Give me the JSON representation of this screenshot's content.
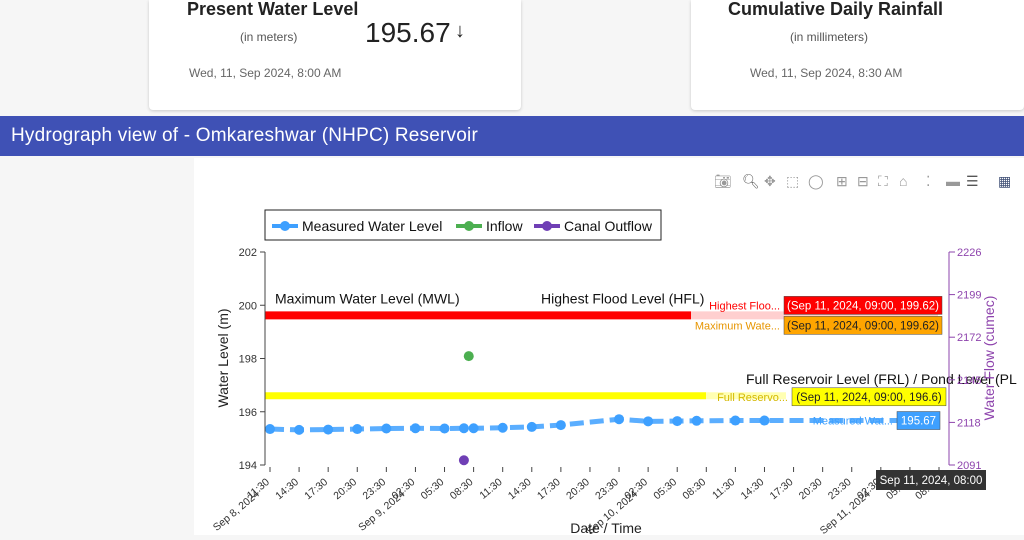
{
  "cards": {
    "water_level": {
      "title": "Present Water Level",
      "unit": "(in meters)",
      "value": "195.67",
      "trend_icon": "arrow-down-icon",
      "date": "Wed, 11, Sep 2024, 8:00 AM"
    },
    "rainfall": {
      "title": "Cumulative Daily Rainfall",
      "unit": "(in millimeters)",
      "date": "Wed, 11, Sep 2024, 8:30 AM"
    }
  },
  "banner": {
    "title": "Hydrograph view of - Omkareshwar (NHPC) Reservoir"
  },
  "modebar": [
    "camera-icon",
    "zoom-icon",
    "pan-icon",
    "box-select-icon",
    "lasso-icon",
    "zoom-in-icon",
    "zoom-out-icon",
    "autoscale-icon",
    "reset-axes-icon",
    "spike-lines-icon",
    "hover-closest-icon",
    "hover-compare-icon",
    "plotly-logo-icon"
  ],
  "chart_data": {
    "type": "line",
    "legend_placement": "top-left",
    "legend": [
      "Measured Water Level",
      "Inflow",
      "Canal Outflow"
    ],
    "xlabel": "Date / Time",
    "ylabel": "Water Level (m)",
    "y2label": "Water Flow (cumec)",
    "ylim": [
      194,
      202
    ],
    "y2lim": [
      2091,
      2226
    ],
    "yticks": [
      "194",
      "196",
      "198",
      "200",
      "202"
    ],
    "y2ticks": [
      "2091",
      "2118",
      "2145",
      "2172",
      "2199",
      "2226"
    ],
    "x_ticks": [
      "11:30\nSep 8, 2024",
      "14:30",
      "17:30",
      "20:30",
      "23:30",
      "02:30\nSep 9, 2024",
      "05:30",
      "08:30",
      "11:30",
      "14:30",
      "17:30",
      "20:30",
      "23:30",
      "02:30\nSep 10, 2024",
      "05:30",
      "08:30",
      "11:30",
      "14:30",
      "17:30",
      "20:30",
      "23:30",
      "02:30\nSep 11, 2024",
      "05:30",
      "08:30"
    ],
    "x_hours": [
      0,
      3,
      6,
      9,
      12,
      15,
      18,
      21,
      24,
      27,
      30,
      33,
      36,
      39,
      42,
      45,
      48,
      51,
      54,
      57,
      60,
      63,
      66,
      69
    ],
    "series": [
      {
        "name": "Measured Water Level",
        "color": "#3ea0ff",
        "x_hours": [
          0,
          3,
          6,
          9,
          12,
          15,
          18,
          20,
          21,
          24,
          27,
          30,
          36,
          39,
          42,
          44,
          48,
          51,
          68.5
        ],
        "values": [
          195.35,
          195.32,
          195.33,
          195.35,
          195.37,
          195.38,
          195.37,
          195.38,
          195.38,
          195.4,
          195.43,
          195.5,
          195.72,
          195.64,
          195.65,
          195.66,
          195.67,
          195.67,
          195.67
        ]
      },
      {
        "name": "Inflow",
        "color": "#4caf50",
        "x_hours": [
          20.5
        ],
        "flow_values": [
          2160
        ]
      },
      {
        "name": "Canal Outflow",
        "color": "#6f3fb5",
        "x_hours": [
          20
        ],
        "flow_values": [
          2094
        ]
      }
    ],
    "reference_lines": [
      {
        "name": "Maximum Water Level (MWL)",
        "value": 199.62,
        "color": "#ff0000"
      },
      {
        "name": "Highest Flood Level (HFL)",
        "value": 199.62,
        "color": "#ff0000"
      },
      {
        "name": "Full Reservoir Level (FRL) / Pond Level (PL",
        "value": 196.6,
        "color": "#ffff00"
      }
    ],
    "hover_labels": [
      {
        "trace": "Highest Floo...",
        "text": "(Sep 11, 2024, 09:00, 199.62)",
        "bg": "#ff0000",
        "fg": "#ffffff"
      },
      {
        "trace": "Maximum Wate...",
        "text": "(Sep 11, 2024, 09:00, 199.62)",
        "bg": "#ffa500",
        "fg": "#222222"
      },
      {
        "trace": "Full Reservo...",
        "text": "(Sep 11, 2024, 09:00, 196.6)",
        "bg": "#ffff00",
        "fg": "#222222"
      },
      {
        "trace": "Measured Wat...",
        "text": "195.67",
        "bg": "#3ea0ff",
        "fg": "#ffffff"
      }
    ],
    "x_hover": "Sep 11, 2024, 08:00"
  }
}
